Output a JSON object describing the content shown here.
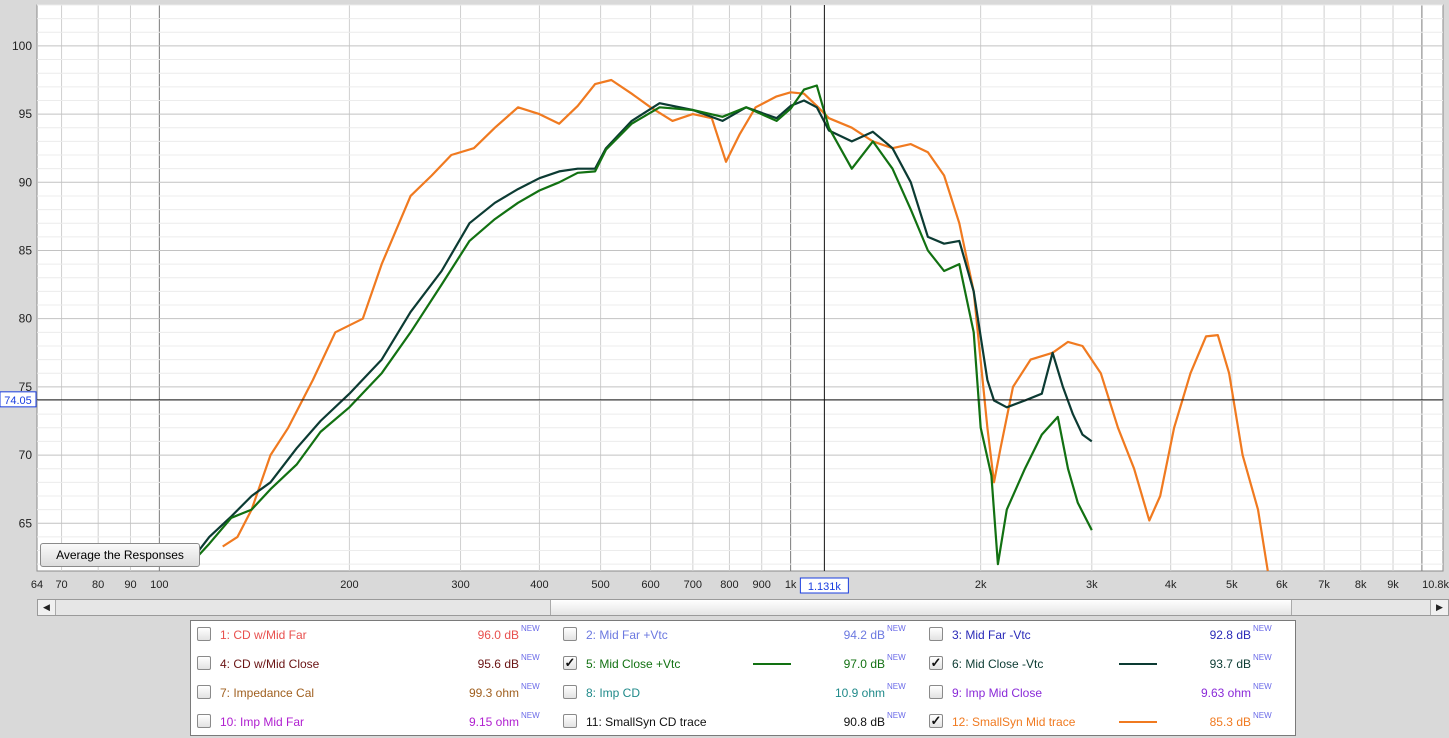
{
  "chart_data": {
    "type": "line",
    "x_scale": "log",
    "xlim": [
      64,
      10800
    ],
    "ylim": [
      61.5,
      103
    ],
    "grid": true,
    "x_ticks": [
      {
        "v": 64,
        "label": "64"
      },
      {
        "v": 70,
        "label": "70"
      },
      {
        "v": 80,
        "label": "80"
      },
      {
        "v": 90,
        "label": "90"
      },
      {
        "v": 100,
        "label": "100"
      },
      {
        "v": 200,
        "label": "200"
      },
      {
        "v": 300,
        "label": "300"
      },
      {
        "v": 400,
        "label": "400"
      },
      {
        "v": 500,
        "label": "500"
      },
      {
        "v": 600,
        "label": "600"
      },
      {
        "v": 700,
        "label": "700"
      },
      {
        "v": 800,
        "label": "800"
      },
      {
        "v": 900,
        "label": "900"
      },
      {
        "v": 1000,
        "label": "1k"
      },
      {
        "v": 2000,
        "label": "2k"
      },
      {
        "v": 3000,
        "label": "3k"
      },
      {
        "v": 4000,
        "label": "4k"
      },
      {
        "v": 5000,
        "label": "5k"
      },
      {
        "v": 6000,
        "label": "6k"
      },
      {
        "v": 7000,
        "label": "7k"
      },
      {
        "v": 8000,
        "label": "8k"
      },
      {
        "v": 9000,
        "label": "9k"
      },
      {
        "v": 10800,
        "label": "10.8k"
      }
    ],
    "y_ticks": [
      {
        "v": 65,
        "label": "65"
      },
      {
        "v": 70,
        "label": "70"
      },
      {
        "v": 75,
        "label": "75"
      },
      {
        "v": 80,
        "label": "80"
      },
      {
        "v": 85,
        "label": "85"
      },
      {
        "v": 90,
        "label": "90"
      },
      {
        "v": 95,
        "label": "95"
      },
      {
        "v": 100,
        "label": "100"
      }
    ],
    "cursor": {
      "x": 1131,
      "x_label": "1.131k",
      "y": 74.05,
      "y_label": "74.05"
    },
    "series": [
      {
        "name": "12: SmallSyn Mid trace",
        "color": "#f07a20",
        "points": [
          [
            126,
            63.3
          ],
          [
            133,
            64
          ],
          [
            140,
            66
          ],
          [
            150,
            70
          ],
          [
            160,
            72
          ],
          [
            175,
            75.5
          ],
          [
            190,
            79
          ],
          [
            210,
            80
          ],
          [
            225,
            84
          ],
          [
            250,
            89
          ],
          [
            270,
            90.5
          ],
          [
            290,
            92
          ],
          [
            315,
            92.5
          ],
          [
            340,
            94
          ],
          [
            370,
            95.5
          ],
          [
            400,
            95
          ],
          [
            430,
            94.3
          ],
          [
            460,
            95.6
          ],
          [
            490,
            97.2
          ],
          [
            520,
            97.5
          ],
          [
            560,
            96.5
          ],
          [
            600,
            95.5
          ],
          [
            650,
            94.5
          ],
          [
            700,
            95
          ],
          [
            750,
            94.7
          ],
          [
            790,
            91.5
          ],
          [
            830,
            93.5
          ],
          [
            880,
            95.5
          ],
          [
            950,
            96.3
          ],
          [
            1000,
            96.6
          ],
          [
            1050,
            96.5
          ],
          [
            1100,
            95.6
          ],
          [
            1150,
            94.7
          ],
          [
            1250,
            94
          ],
          [
            1350,
            93
          ],
          [
            1450,
            92.5
          ],
          [
            1550,
            92.8
          ],
          [
            1650,
            92.2
          ],
          [
            1750,
            90.5
          ],
          [
            1850,
            87
          ],
          [
            1950,
            82
          ],
          [
            2050,
            72
          ],
          [
            2100,
            68
          ],
          [
            2150,
            70.5
          ],
          [
            2250,
            75
          ],
          [
            2400,
            77
          ],
          [
            2600,
            77.5
          ],
          [
            2750,
            78.3
          ],
          [
            2900,
            78
          ],
          [
            3100,
            76
          ],
          [
            3300,
            72
          ],
          [
            3500,
            69
          ],
          [
            3700,
            65.2
          ],
          [
            3850,
            67
          ],
          [
            4050,
            72
          ],
          [
            4300,
            76
          ],
          [
            4550,
            78.7
          ],
          [
            4750,
            78.8
          ],
          [
            4950,
            76
          ],
          [
            5200,
            70
          ],
          [
            5500,
            66
          ],
          [
            5700,
            61.5
          ]
        ]
      },
      {
        "name": "6: Mid Close -Vtc",
        "color": "#0c3b33",
        "points": [
          [
            112,
            62.2
          ],
          [
            120,
            64
          ],
          [
            130,
            65.5
          ],
          [
            140,
            67
          ],
          [
            150,
            68
          ],
          [
            165,
            70.5
          ],
          [
            180,
            72.5
          ],
          [
            200,
            74.5
          ],
          [
            225,
            77
          ],
          [
            250,
            80.5
          ],
          [
            280,
            83.5
          ],
          [
            310,
            87
          ],
          [
            340,
            88.5
          ],
          [
            370,
            89.5
          ],
          [
            400,
            90.3
          ],
          [
            430,
            90.8
          ],
          [
            460,
            91
          ],
          [
            490,
            91
          ],
          [
            510,
            92.5
          ],
          [
            560,
            94.5
          ],
          [
            620,
            95.8
          ],
          [
            700,
            95.3
          ],
          [
            780,
            94.5
          ],
          [
            850,
            95.5
          ],
          [
            950,
            94.7
          ],
          [
            1000,
            95.6
          ],
          [
            1050,
            96
          ],
          [
            1100,
            95.5
          ],
          [
            1150,
            93.8
          ],
          [
            1250,
            93
          ],
          [
            1350,
            93.7
          ],
          [
            1450,
            92.5
          ],
          [
            1550,
            90
          ],
          [
            1650,
            86
          ],
          [
            1750,
            85.5
          ],
          [
            1850,
            85.7
          ],
          [
            1950,
            82
          ],
          [
            2050,
            75.5
          ],
          [
            2100,
            74
          ],
          [
            2200,
            73.5
          ],
          [
            2350,
            74
          ],
          [
            2500,
            74.5
          ],
          [
            2600,
            77.5
          ],
          [
            2700,
            75
          ],
          [
            2800,
            73
          ],
          [
            2900,
            71.5
          ],
          [
            3000,
            71
          ]
        ]
      },
      {
        "name": "5: Mid Close +Vtc",
        "color": "#127112",
        "points": [
          [
            112,
            62
          ],
          [
            120,
            63.5
          ],
          [
            130,
            65.4
          ],
          [
            140,
            66
          ],
          [
            150,
            67.5
          ],
          [
            165,
            69.3
          ],
          [
            180,
            71.7
          ],
          [
            200,
            73.5
          ],
          [
            225,
            76
          ],
          [
            250,
            79
          ],
          [
            280,
            82.5
          ],
          [
            310,
            85.7
          ],
          [
            340,
            87.3
          ],
          [
            370,
            88.5
          ],
          [
            400,
            89.4
          ],
          [
            430,
            90
          ],
          [
            460,
            90.7
          ],
          [
            490,
            90.8
          ],
          [
            510,
            92.4
          ],
          [
            560,
            94.3
          ],
          [
            620,
            95.5
          ],
          [
            700,
            95.3
          ],
          [
            780,
            94.8
          ],
          [
            850,
            95.5
          ],
          [
            950,
            94.5
          ],
          [
            1000,
            95.4
          ],
          [
            1050,
            96.8
          ],
          [
            1100,
            97.1
          ],
          [
            1150,
            94
          ],
          [
            1250,
            91
          ],
          [
            1350,
            93
          ],
          [
            1450,
            91
          ],
          [
            1550,
            88
          ],
          [
            1650,
            85
          ],
          [
            1750,
            83.5
          ],
          [
            1850,
            84
          ],
          [
            1950,
            79
          ],
          [
            2000,
            72
          ],
          [
            2080,
            68.5
          ],
          [
            2130,
            62
          ],
          [
            2200,
            66
          ],
          [
            2350,
            69
          ],
          [
            2500,
            71.5
          ],
          [
            2650,
            72.8
          ],
          [
            2750,
            69
          ],
          [
            2850,
            66.5
          ],
          [
            3000,
            64.5
          ]
        ]
      }
    ]
  },
  "ui": {
    "average_button": "Average the Responses"
  },
  "legend": {
    "items": [
      {
        "label": "1: CD w/Mid Far",
        "value": "96.0 dB",
        "sup": "NEW",
        "color": "#e8504e",
        "checked": false
      },
      {
        "label": "2: Mid Far +Vtc",
        "value": "94.2 dB",
        "sup": "NEW",
        "color": "#6b78e0",
        "checked": false
      },
      {
        "label": "3: Mid Far -Vtc",
        "value": "92.8 dB",
        "sup": "NEW",
        "color": "#2a2ab8",
        "checked": false
      },
      {
        "label": "4: CD w/Mid Close",
        "value": "95.6 dB",
        "sup": "NEW",
        "color": "#6a1414",
        "checked": false
      },
      {
        "label": "5: Mid Close +Vtc",
        "value": "97.0 dB",
        "sup": "NEW",
        "color": "#127112",
        "checked": true
      },
      {
        "label": "6: Mid Close -Vtc",
        "value": "93.7 dB",
        "sup": "NEW",
        "color": "#0c3b33",
        "checked": true
      },
      {
        "label": "7: Impedance Cal",
        "value": "99.3 ohm",
        "sup": "NEW",
        "color": "#a06020",
        "checked": false
      },
      {
        "label": "8: Imp CD",
        "value": "10.9 ohm",
        "sup": "NEW",
        "color": "#208a8a",
        "checked": false
      },
      {
        "label": "9: Imp Mid Close",
        "value": "9.63 ohm",
        "sup": "NEW",
        "color": "#8a2ad8",
        "checked": false
      },
      {
        "label": "10: Imp Mid Far",
        "value": "9.15 ohm",
        "sup": "NEW",
        "color": "#b020d0",
        "checked": false
      },
      {
        "label": "11: SmallSyn CD trace",
        "value": "90.8 dB",
        "sup": "NEW",
        "color": "#111111",
        "checked": false
      },
      {
        "label": "12: SmallSyn Mid trace",
        "value": "85.3 dB",
        "sup": "NEW",
        "color": "#f07a20",
        "checked": true
      }
    ]
  }
}
